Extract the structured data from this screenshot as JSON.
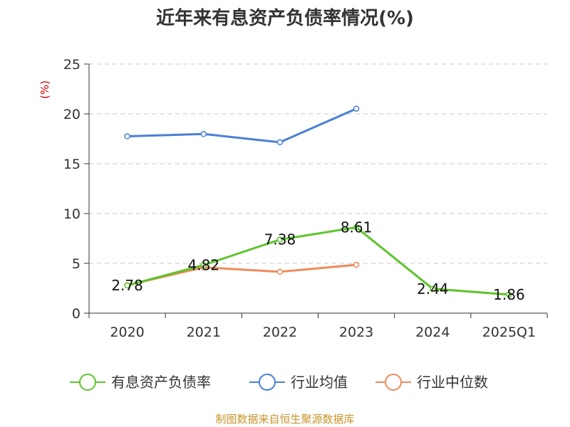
{
  "chart_data": {
    "type": "line",
    "title": "近年来有息资产负债率情况(%)",
    "ylabel": "(%)",
    "xlabel": "",
    "categories": [
      "2020",
      "2021",
      "2022",
      "2023",
      "2024",
      "2025Q1"
    ],
    "ylim": [
      0,
      25
    ],
    "yticks": [
      0,
      5,
      10,
      15,
      20,
      25
    ],
    "grid": true,
    "legend_position": "bottom",
    "series": [
      {
        "name": "有息资产负债率",
        "color": "#5cc52a",
        "values": [
          2.78,
          4.82,
          7.38,
          8.61,
          2.44,
          1.86
        ],
        "labels": [
          "2.78",
          "4.82",
          "7.38",
          "8.61",
          "2.44",
          "1.86"
        ]
      },
      {
        "name": "行业均值",
        "color": "#4a7fd6",
        "values": [
          17.75,
          17.98,
          17.15,
          20.52,
          null,
          null
        ]
      },
      {
        "name": "行业中位数",
        "color": "#f08b5a",
        "values": [
          2.8,
          4.6,
          4.15,
          4.85,
          null,
          null
        ]
      }
    ]
  },
  "source_note": "制图数据来自恒生聚源数据库"
}
